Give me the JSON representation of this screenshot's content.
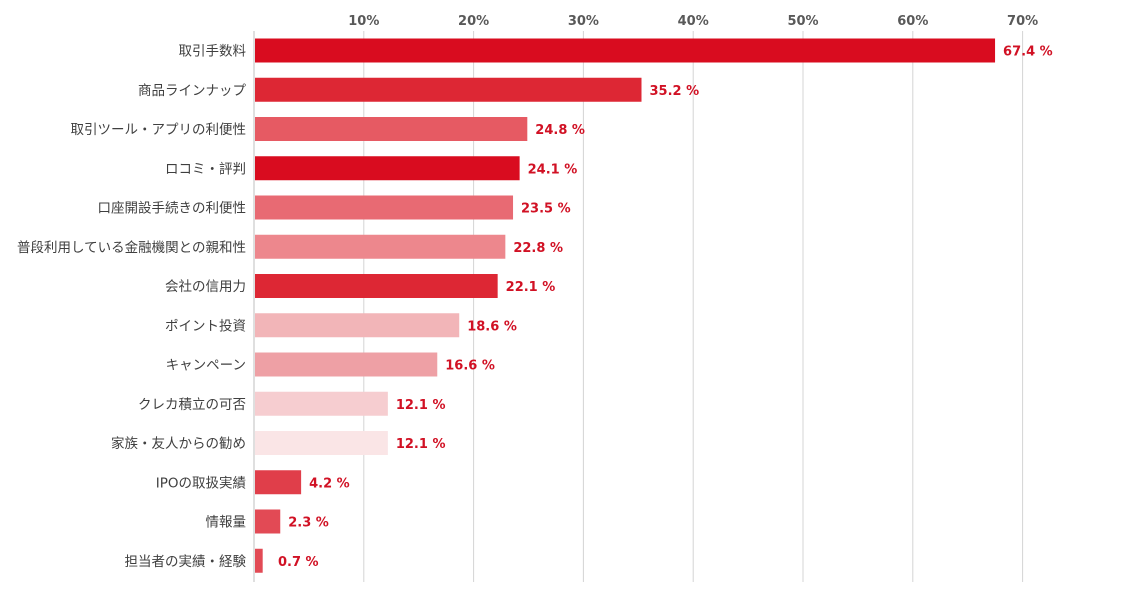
{
  "chart_data": {
    "type": "bar",
    "orientation": "horizontal",
    "title": "",
    "xlabel": "",
    "ylabel": "",
    "xlim": [
      0,
      70
    ],
    "ticks": [
      {
        "value": 10,
        "label": "10%"
      },
      {
        "value": 20,
        "label": "20%"
      },
      {
        "value": 30,
        "label": "30%"
      },
      {
        "value": 40,
        "label": "40%"
      },
      {
        "value": 50,
        "label": "50%"
      },
      {
        "value": 60,
        "label": "60%"
      },
      {
        "value": 70,
        "label": "70%"
      }
    ],
    "grid": true,
    "legend": "none",
    "value_suffix": " %",
    "categories": [
      "取引手数料",
      "商品ラインナップ",
      "取引ツール・アプリの利便性",
      "ロコミ・評判",
      "口座開設手続きの利便性",
      "普段利用している金融機関との親和性",
      "会社の信用力",
      "ポイント投資",
      "キャンペーン",
      "クレカ積立の可否",
      "家族・友人からの勧め",
      "IPOの取扱実績",
      "情報量",
      "担当者の実績・経験"
    ],
    "values": [
      67.4,
      35.2,
      24.8,
      24.1,
      23.5,
      22.8,
      22.1,
      18.6,
      16.6,
      12.1,
      12.1,
      4.2,
      2.3,
      0.7
    ],
    "value_labels": [
      "67.4 %",
      "35.2 %",
      "24.8 %",
      "24.1 %",
      "23.5 %",
      "22.8 %",
      "22.1 %",
      "18.6 %",
      "16.6 %",
      "12.1 %",
      "12.1 %",
      "4.2 %",
      "2.3 %",
      "0.7 %"
    ],
    "bar_colors": [
      "#d90c1f",
      "#dd2734",
      "#e65a63",
      "#d90c1f",
      "#e86a73",
      "#ed878d",
      "#dd2734",
      "#f2b5b8",
      "#eea0a5",
      "#f6cdd0",
      "#fae5e6",
      "#e03e4a",
      "#e24a55",
      "#e24a55"
    ],
    "colors": {
      "label_text": "#d11124",
      "category_text": "#3f3f3f",
      "tick_text": "#595959",
      "grid": "#d4d4d4",
      "axis": "#bfbfbf"
    }
  }
}
